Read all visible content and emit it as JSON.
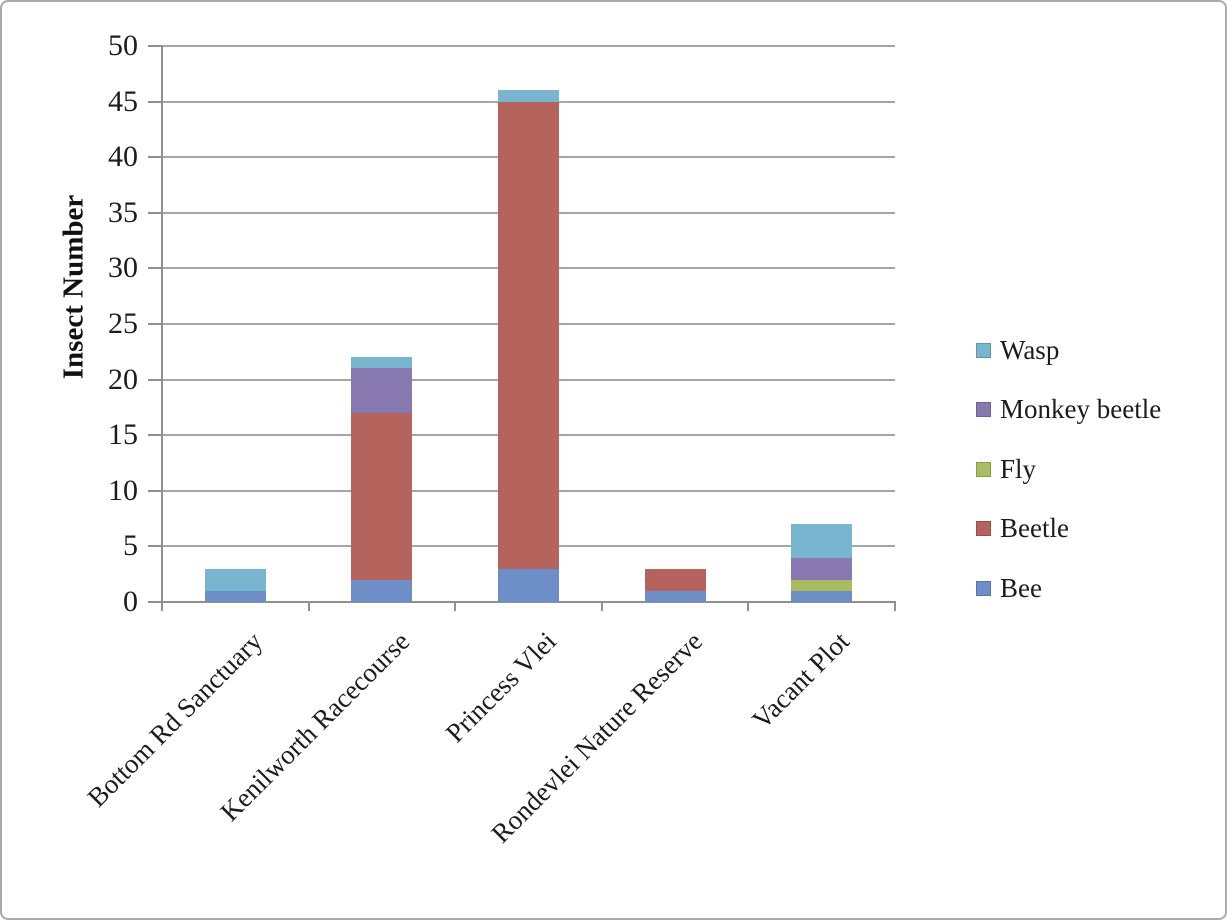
{
  "chart_data": {
    "type": "bar",
    "stacked": true,
    "title": "",
    "xlabel": "",
    "ylabel": "Insect Number",
    "ylim": [
      0,
      50
    ],
    "yticks": [
      0,
      5,
      10,
      15,
      20,
      25,
      30,
      35,
      40,
      45,
      50
    ],
    "grid": true,
    "legend_position": "right",
    "categories": [
      "Bottom Rd Sanctuary",
      "Kenilworth Racecourse",
      "Princess Vlei",
      "Rondevlei Nature Reserve",
      "Vacant Plot"
    ],
    "series": [
      {
        "name": "Bee",
        "color": "#6d8ec6",
        "values": [
          1,
          2,
          3,
          1,
          1
        ]
      },
      {
        "name": "Beetle",
        "color": "#b5635d",
        "values": [
          0,
          15,
          42,
          2,
          0
        ]
      },
      {
        "name": "Fly",
        "color": "#a9bc62",
        "values": [
          0,
          0,
          0,
          0,
          1
        ]
      },
      {
        "name": "Monkey beetle",
        "color": "#8878b0",
        "values": [
          0,
          4,
          0,
          0,
          2
        ]
      },
      {
        "name": "Wasp",
        "color": "#79b5ce",
        "values": [
          2,
          1,
          1,
          0,
          3
        ]
      }
    ],
    "legend_order": [
      "Wasp",
      "Monkey beetle",
      "Fly",
      "Beetle",
      "Bee"
    ]
  },
  "colors": {
    "gridline": "#a6a6a6",
    "axis": "#8f8f8f",
    "text": "#1c1c1c",
    "frame_border": "#ababab"
  }
}
